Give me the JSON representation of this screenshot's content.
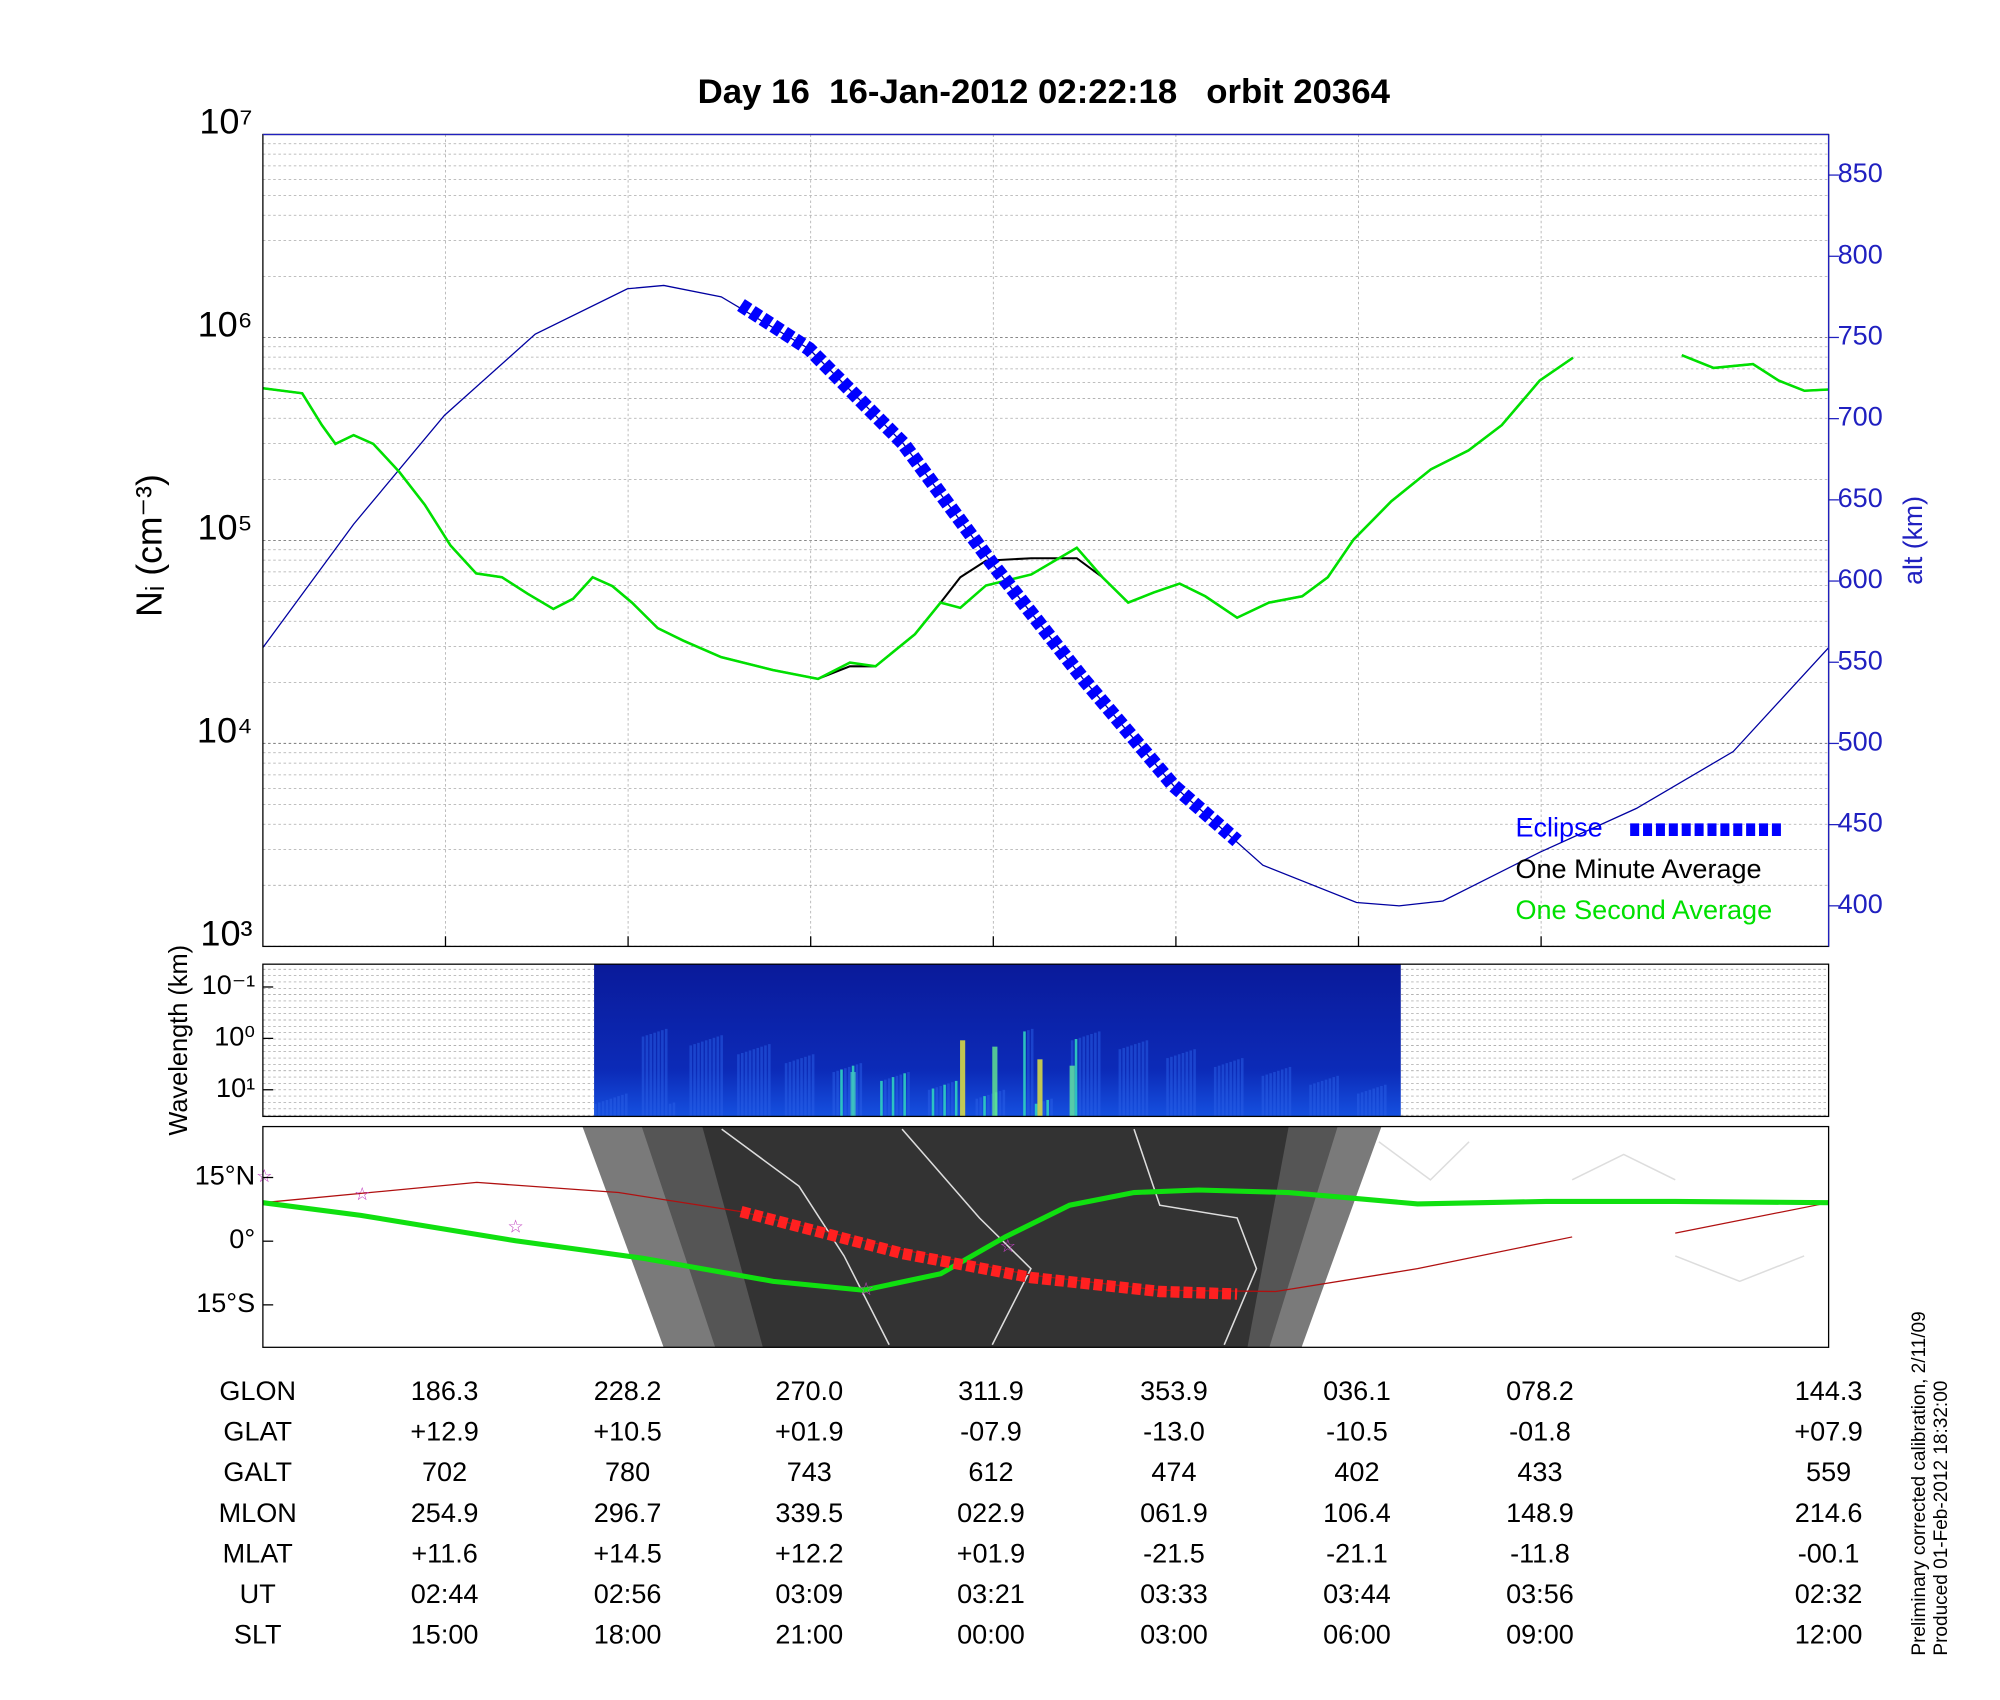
{
  "chart_data": [
    {
      "type": "line",
      "title": "Day 16  16-Jan-2012 02:22:18   orbit 20364",
      "y_label": "Nᵢ (cm⁻³)",
      "y2_label": "alt (km)",
      "log_y": true,
      "grid": true,
      "legend": "lower right",
      "xlim": [
        0,
        103.5
      ],
      "ylim": [
        1000,
        10000000
      ],
      "yticks": [
        {
          "value": 1000,
          "label": "10³"
        },
        {
          "value": 10000,
          "label": "10⁴"
        },
        {
          "value": 100000,
          "label": "10⁵"
        },
        {
          "value": 1000000,
          "label": "10⁶"
        },
        {
          "value": 10000000,
          "label": "10⁷"
        }
      ],
      "y2lim": [
        375,
        875
      ],
      "y2ticks": [
        400,
        450,
        500,
        550,
        600,
        650,
        700,
        750,
        800,
        850
      ],
      "x": [
        0,
        2.6,
        3.9,
        4.8,
        6.0,
        7.3,
        9.0,
        10.7,
        12.4,
        14.1,
        15.8,
        17.5,
        19.2,
        20.5,
        21.8,
        23.1,
        24.4,
        26.1,
        27.8,
        30.3,
        33.7,
        36.7,
        38.8,
        40.5,
        43.1,
        44.8,
        46.1,
        47.8,
        50.8,
        53.8,
        55.5,
        57.2,
        58.9,
        60.6,
        62.3,
        64.4,
        66.5,
        68.7,
        70.4,
        72.1,
        74.6,
        77.2,
        79.7,
        81.9,
        84.4,
        86.6,
        90.0,
        93.8,
        95.9,
        98.5,
        100.2,
        101.9,
        103.5
      ],
      "series": [
        {
          "name": "Eclipse",
          "color": "#0000ff",
          "axis": "y2",
          "style": "dotted",
          "x": [
            31.6,
            36.1,
            42.3,
            48.1,
            54.2,
            60.2,
            64.4
          ],
          "values": [
            770,
            743,
            685,
            612,
            540,
            474,
            440
          ]
        },
        {
          "name": "One Minute Average",
          "color": "#000000",
          "values": [
            562000,
            531000,
            370000,
            299000,
            330000,
            299000,
            218000,
            150000,
            94400,
            68800,
            65900,
            54600,
            46000,
            51600,
            65900,
            59600,
            49400,
            37000,
            32100,
            26600,
            23000,
            20800,
            24000,
            24000,
            34500,
            49400,
            65900,
            79400,
            81700,
            81700,
            65900,
            49400,
            55400,
            61300,
            53100,
            41600,
            49400,
            53100,
            65900,
            101000,
            156000,
            224000,
            278000,
            370000,
            613000,
            794000,
            null,
            817000,
            708000,
            739000,
            613000,
            546000,
            554000
          ]
        },
        {
          "name": "One Second Average",
          "color": "#00e000",
          "values": [
            562000,
            531000,
            370000,
            299000,
            330000,
            299000,
            218000,
            150000,
            94400,
            68800,
            65900,
            54600,
            46000,
            51600,
            65900,
            59600,
            49400,
            37000,
            32100,
            26600,
            23000,
            20800,
            25000,
            24000,
            34500,
            49400,
            46600,
            60000,
            68000,
            92000,
            65900,
            49400,
            55400,
            61300,
            53100,
            41600,
            49400,
            53100,
            65900,
            101000,
            156000,
            224000,
            278000,
            370000,
            613000,
            794000,
            null,
            817000,
            708000,
            739000,
            613000,
            546000,
            554000
          ]
        },
        {
          "color": "#0000a0",
          "axis": "y2",
          "x": [
            0,
            6.0,
            12.0,
            18.0,
            24.1,
            26.5,
            30.3,
            36.1,
            42.3,
            48.1,
            54.2,
            60.2,
            66.1,
            72.3,
            75.1,
            78.0,
            84.4,
            90.8,
            97.2,
            103.5
          ],
          "values": [
            559,
            635,
            702,
            752,
            780,
            782,
            775,
            743,
            685,
            612,
            540,
            474,
            425,
            402,
            400,
            403,
            433,
            460,
            495,
            559
          ]
        }
      ]
    },
    {
      "type": "spectrogram",
      "y_label": "Wavelength (km)",
      "log_y": true,
      "y_inverted": true,
      "ylim": [
        0.036,
        33
      ],
      "yticks": [
        {
          "value": 0.1,
          "label": "10⁻¹"
        },
        {
          "value": 1,
          "label": "10⁰"
        },
        {
          "value": 10,
          "label": "10¹"
        }
      ]
    },
    {
      "type": "map",
      "ylim": [
        -25,
        27
      ],
      "yticks": [
        {
          "value": 15,
          "label": "15°N"
        },
        {
          "value": 0,
          "label": "0°"
        },
        {
          "value": -15,
          "label": "15°S"
        }
      ]
    }
  ],
  "table": {
    "rows": [
      {
        "label": "GLON",
        "values": [
          "186.3",
          "228.2",
          "270.0",
          "311.9",
          "353.9",
          "036.1",
          "078.2",
          "144.3"
        ]
      },
      {
        "label": "GLAT",
        "values": [
          "+12.9",
          "+10.5",
          "+01.9",
          "-07.9",
          "-13.0",
          "-10.5",
          "-01.8",
          "+07.9"
        ]
      },
      {
        "label": "GALT",
        "values": [
          "702",
          "780",
          "743",
          "612",
          "474",
          "402",
          "433",
          "559"
        ]
      },
      {
        "label": "MLON",
        "values": [
          "254.9",
          "296.7",
          "339.5",
          "022.9",
          "061.9",
          "106.4",
          "148.9",
          "214.6"
        ]
      },
      {
        "label": "MLAT",
        "values": [
          "+11.6",
          "+14.5",
          "+12.2",
          "+01.9",
          "-21.5",
          "-21.1",
          "-11.8",
          "-00.1"
        ]
      },
      {
        "label": "UT",
        "values": [
          "02:44",
          "02:56",
          "03:09",
          "03:21",
          "03:33",
          "03:44",
          "03:56",
          "02:32"
        ]
      },
      {
        "label": "SLT",
        "values": [
          "15:00",
          "18:00",
          "21:00",
          "00:00",
          "03:00",
          "06:00",
          "09:00",
          "12:00"
        ]
      }
    ]
  },
  "notes": [
    "Preliminary corrected calibration, 2/11/09",
    "Produced 01-Feb-2012 18:32:00"
  ]
}
